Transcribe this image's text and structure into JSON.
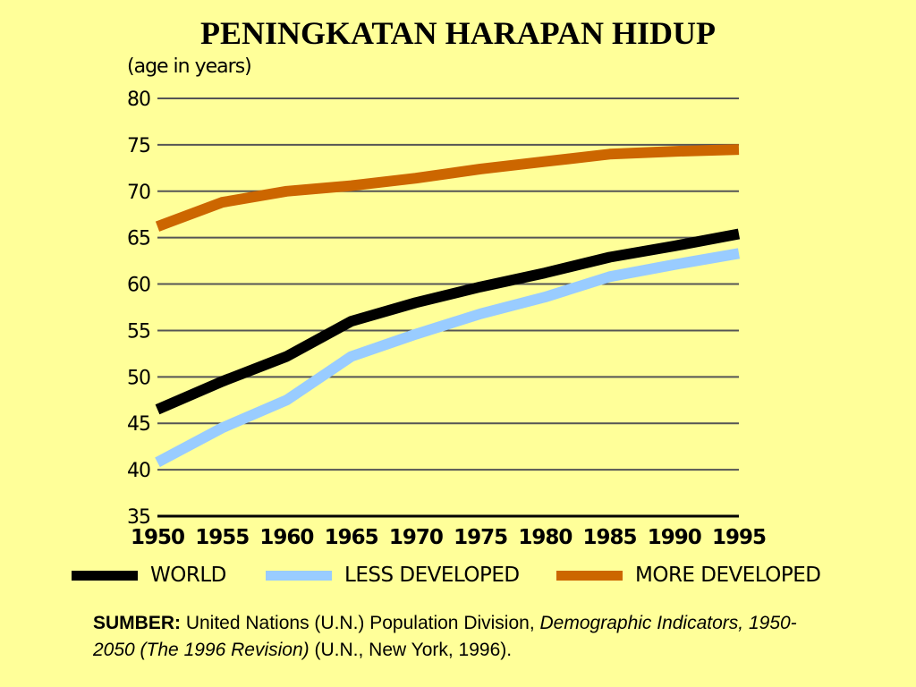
{
  "slide": {
    "title": "PENINGKATAN HARAPAN HIDUP",
    "source": {
      "label": "SUMBER:",
      "text_plain": " United Nations (U.N.) Population Division, ",
      "text_italic": "Demographic Indicators, 1950-2050 (The 1996 Revision)",
      "text_end": " (U.N., New York, 1996)."
    }
  },
  "chart_data": {
    "type": "line",
    "title": "PENINGKATAN HARAPAN HIDUP",
    "xlabel": "",
    "ylabel": "(age in years)",
    "x": [
      1950,
      1955,
      1960,
      1965,
      1970,
      1975,
      1980,
      1985,
      1990,
      1995
    ],
    "xticks": [
      "1950",
      "1955",
      "1960",
      "1965",
      "1970",
      "1975",
      "1980",
      "1985",
      "1990",
      "1995"
    ],
    "yticks": [
      "35",
      "40",
      "45",
      "50",
      "55",
      "60",
      "65",
      "70",
      "75",
      "80"
    ],
    "xlim": [
      1950,
      1995
    ],
    "ylim": [
      35,
      80
    ],
    "grid": true,
    "legend": "bottom",
    "series": [
      {
        "name": "WORLD",
        "color": "#000000",
        "values": [
          46.5,
          49.5,
          52.2,
          56.0,
          58.0,
          59.7,
          61.2,
          62.9,
          64.1,
          65.4
        ]
      },
      {
        "name": "LESS DEVELOPED",
        "color": "#99ccff",
        "values": [
          40.8,
          44.5,
          47.5,
          52.2,
          54.6,
          56.8,
          58.6,
          60.8,
          62.1,
          63.3
        ]
      },
      {
        "name": "MORE DEVELOPED",
        "color": "#cc6600",
        "values": [
          66.2,
          68.8,
          70.0,
          70.6,
          71.4,
          72.4,
          73.2,
          74.0,
          74.3,
          74.5
        ]
      }
    ]
  }
}
